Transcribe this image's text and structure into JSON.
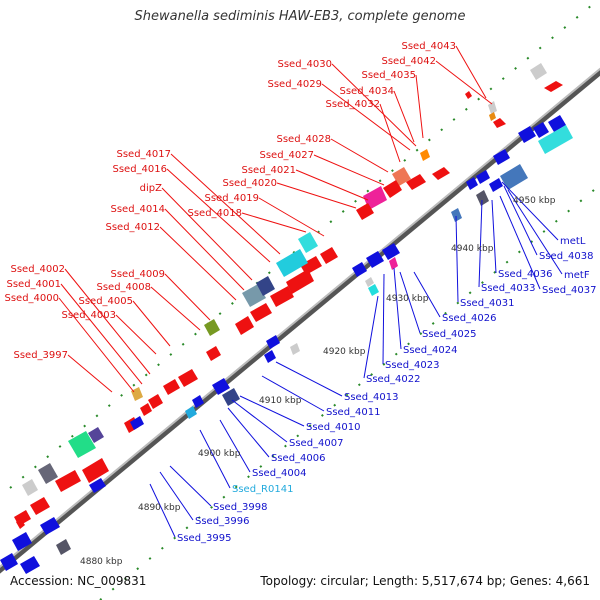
{
  "title": "Shewanella sediminis HAW-EB3, complete genome",
  "footer": {
    "accession": "Accession: NC_009831",
    "summary": "Topology: circular; Length: 5,517,674 bp; Genes: 4,661"
  },
  "colors": {
    "forward": "#ee1111",
    "reverse": "#1010dd",
    "rna": "#22aadd",
    "backbone": "#777777"
  },
  "ticks": [
    "4880 kbp",
    "4890 kbp",
    "4900 kbp",
    "4910 kbp",
    "4920 kbp",
    "4930 kbp",
    "4940 kbp",
    "4950 kbp"
  ],
  "labels_forward": [
    "Ssed_4043",
    "Ssed_4042",
    "Ssed_4030",
    "Ssed_4035",
    "Ssed_4029",
    "Ssed_4034",
    "Ssed_4032",
    "Ssed_4028",
    "Ssed_4027",
    "Ssed_4021",
    "Ssed_4020",
    "Ssed_4019",
    "Ssed_4018",
    "Ssed_4017",
    "Ssed_4016",
    "dipZ",
    "Ssed_4014",
    "Ssed_4012",
    "Ssed_4009",
    "Ssed_4008",
    "Ssed_4005",
    "Ssed_4003",
    "Ssed_4002",
    "Ssed_4001",
    "Ssed_4000",
    "Ssed_3997"
  ],
  "labels_reverse": [
    "metL",
    "Ssed_4038",
    "metF",
    "Ssed_4036",
    "Ssed_4037",
    "Ssed_4033",
    "Ssed_4031",
    "Ssed_4026",
    "Ssed_4025",
    "Ssed_4024",
    "Ssed_4023",
    "Ssed_4022",
    "Ssed_4013",
    "Ssed_4011",
    "Ssed_4010",
    "Ssed_4007",
    "Ssed_4006",
    "Ssed_4004",
    "Ssed_R0141",
    "Ssed_3998",
    "Ssed_3996",
    "Ssed_3995"
  ]
}
